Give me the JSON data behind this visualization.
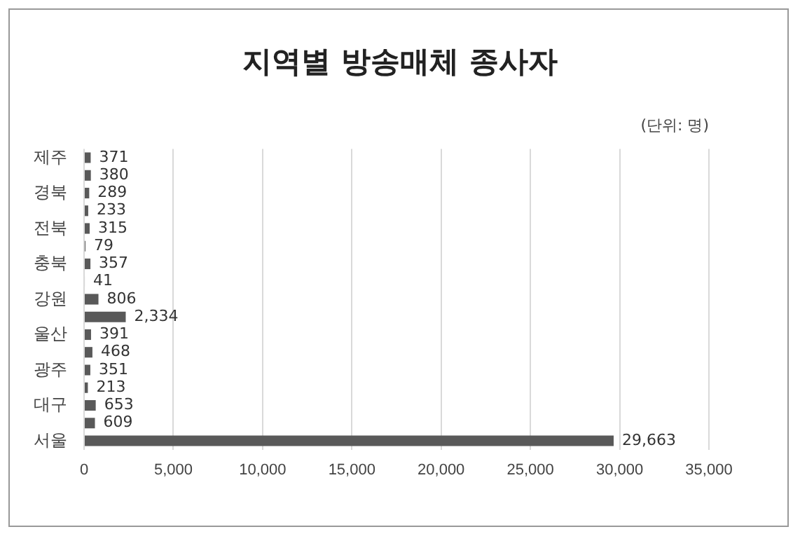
{
  "chart_data": {
    "type": "bar",
    "orientation": "horizontal",
    "title": "지역별 방송매체 종사자",
    "annotations": [
      "(단위: 명)"
    ],
    "categories": [
      "제주",
      null,
      "경북",
      null,
      "전북",
      null,
      "충북",
      null,
      "강원",
      null,
      "울산",
      null,
      "광주",
      null,
      "대구",
      null,
      "서울"
    ],
    "values": [
      371,
      380,
      289,
      233,
      315,
      79,
      357,
      41,
      806,
      2334,
      391,
      468,
      351,
      213,
      653,
      609,
      29663
    ],
    "value_labels": [
      "371",
      "380",
      "289",
      "233",
      "315",
      "79",
      "357",
      "41",
      "806",
      "2,334",
      "391",
      "468",
      "351",
      "213",
      "653",
      "609",
      "29,663"
    ],
    "color": "#595959",
    "xlim": [
      0,
      35000
    ],
    "xticks": [
      0,
      {
        "value": 5000,
        "label": "5,000"
      },
      {
        "value": 10000,
        "label": "10,000"
      },
      {
        "value": 15000,
        "label": "15,000"
      },
      {
        "value": 20000,
        "label": "20,000"
      },
      {
        "value": 25000,
        "label": "25,000"
      },
      {
        "value": 30000,
        "label": "30,000"
      },
      {
        "value": 35000,
        "label": "35,000"
      }
    ],
    "grid": "x",
    "legend": false
  }
}
